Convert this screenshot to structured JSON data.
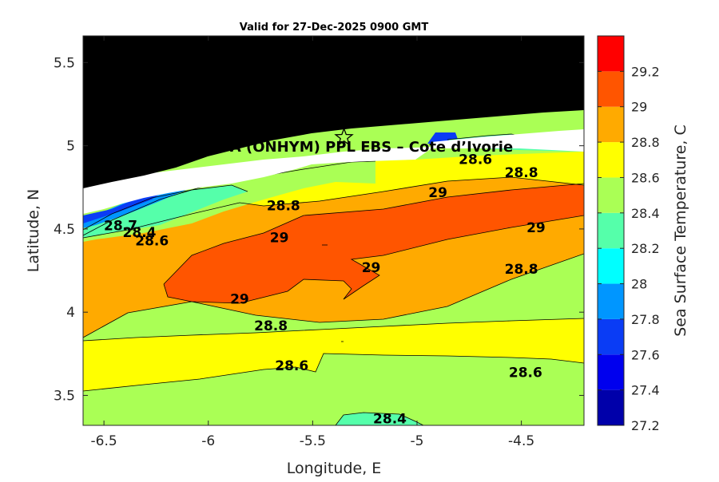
{
  "chart_data": {
    "type": "contour",
    "title": "Valid for 27-Dec-2025 0900 GMT",
    "xlabel": "Longitude, E",
    "ylabel": "Latitude, N",
    "xlim": [
      -6.6,
      -4.2
    ],
    "ylim": [
      3.32,
      5.66
    ],
    "xticks": [
      "-6.5",
      "-6",
      "-5.5",
      "-5",
      "-4.5"
    ],
    "xtick_values": [
      -6.5,
      -6,
      -5.5,
      -5,
      -4.5
    ],
    "yticks": [
      "3.5",
      "4",
      "4.5",
      "5",
      "5.5"
    ],
    "ytick_values": [
      3.5,
      4,
      4.5,
      5,
      5.5
    ],
    "colorbar": {
      "label": "Sea Surface Temperature, C",
      "min": 27.2,
      "max": 29.4,
      "step": 0.1,
      "tick_labels": [
        "27.2",
        "27.4",
        "27.6",
        "27.8",
        "28",
        "28.2",
        "28.4",
        "28.6",
        "28.8",
        "29",
        "29.2"
      ],
      "tick_values": [
        27.2,
        27.4,
        27.6,
        27.8,
        28.0,
        28.2,
        28.4,
        28.6,
        28.8,
        29.0,
        29.2
      ],
      "colors": [
        "#0000aa",
        "#0000ee",
        "#0a3cf5",
        "#0096ff",
        "#00ffff",
        "#55ffaa",
        "#aaff55",
        "#ffff00",
        "#ffaa00",
        "#ff5500",
        "#ff0000"
      ]
    },
    "land_color": "#000000",
    "site": {
      "label": "A (ONHYM) PPL EBS  – Cote d’Ivorie",
      "lon": -5.35,
      "lat": 5.05,
      "marker": "star-icon"
    },
    "contour_labels": [
      {
        "text": "28.6",
        "lon": -4.72,
        "lat": 4.92
      },
      {
        "text": "28.8",
        "lon": -4.5,
        "lat": 4.84
      },
      {
        "text": "29",
        "lon": -4.9,
        "lat": 4.72
      },
      {
        "text": "28.8",
        "lon": -5.64,
        "lat": 4.64
      },
      {
        "text": "28.7",
        "lon": -6.42,
        "lat": 4.52
      },
      {
        "text": "28.4",
        "lon": -6.33,
        "lat": 4.48
      },
      {
        "text": "28.6",
        "lon": -6.27,
        "lat": 4.43
      },
      {
        "text": "29",
        "lon": -5.66,
        "lat": 4.45
      },
      {
        "text": "29",
        "lon": -4.43,
        "lat": 4.51
      },
      {
        "text": "29",
        "lon": -5.22,
        "lat": 4.27
      },
      {
        "text": "28.8",
        "lon": -4.5,
        "lat": 4.26
      },
      {
        "text": "29",
        "lon": -5.85,
        "lat": 4.08
      },
      {
        "text": "28.8",
        "lon": -5.7,
        "lat": 3.92
      },
      {
        "text": "28.6",
        "lon": -5.6,
        "lat": 3.68
      },
      {
        "text": "28.6",
        "lon": -4.48,
        "lat": 3.64
      },
      {
        "text": "28.4",
        "lon": -5.13,
        "lat": 3.36
      }
    ]
  }
}
